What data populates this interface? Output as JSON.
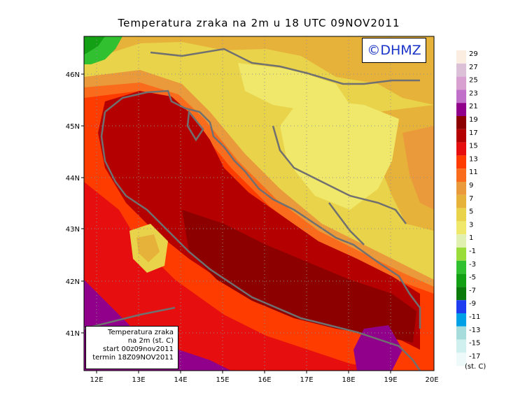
{
  "title": "Temperatura zraka na 2m u 18 UTC 09NOV2011",
  "copyright": "©DHMZ",
  "infobox": {
    "line1": "Temperatura zraka",
    "line2": "na 2m (st. C)",
    "line3": "start 00z09nov2011",
    "line4": "termin 18Z09NOV2011"
  },
  "axes": {
    "lon_labels": [
      "12E",
      "13E",
      "14E",
      "15E",
      "16E",
      "17E",
      "18E",
      "19E",
      "20E"
    ],
    "lat_labels": [
      "46N",
      "45N",
      "44N",
      "43N",
      "42N",
      "41N"
    ]
  },
  "legend": {
    "unit": "(st. C)",
    "entries": [
      {
        "label": "29",
        "color": "#fbeee0"
      },
      {
        "label": "27",
        "color": "#dcc0d8"
      },
      {
        "label": "25",
        "color": "#d8a0d0"
      },
      {
        "label": "23",
        "color": "#c070c8"
      },
      {
        "label": "21",
        "color": "#90008a"
      },
      {
        "label": "19",
        "color": "#8c0000"
      },
      {
        "label": "17",
        "color": "#b40000"
      },
      {
        "label": "15",
        "color": "#e60e0e"
      },
      {
        "label": "13",
        "color": "#ff3c00"
      },
      {
        "label": "11",
        "color": "#fa6c1c"
      },
      {
        "label": "9",
        "color": "#ea9a3a"
      },
      {
        "label": "7",
        "color": "#e7b23a"
      },
      {
        "label": "5",
        "color": "#e9d34a"
      },
      {
        "label": "3",
        "color": "#f0e86a"
      },
      {
        "label": "1",
        "color": "#e0f0b0"
      },
      {
        "label": "-1",
        "color": "#9adc3a"
      },
      {
        "label": "-3",
        "color": "#30c030"
      },
      {
        "label": "-5",
        "color": "#14a014"
      },
      {
        "label": "-7",
        "color": "#0a7a0a"
      },
      {
        "label": "-9",
        "color": "#1e3cf0"
      },
      {
        "label": "-11",
        "color": "#00a0e6"
      },
      {
        "label": "-13",
        "color": "#a6dcdc"
      },
      {
        "label": "-15",
        "color": "#d0f0f0"
      },
      {
        "label": "-17",
        "color": "#eefafa"
      }
    ]
  }
}
